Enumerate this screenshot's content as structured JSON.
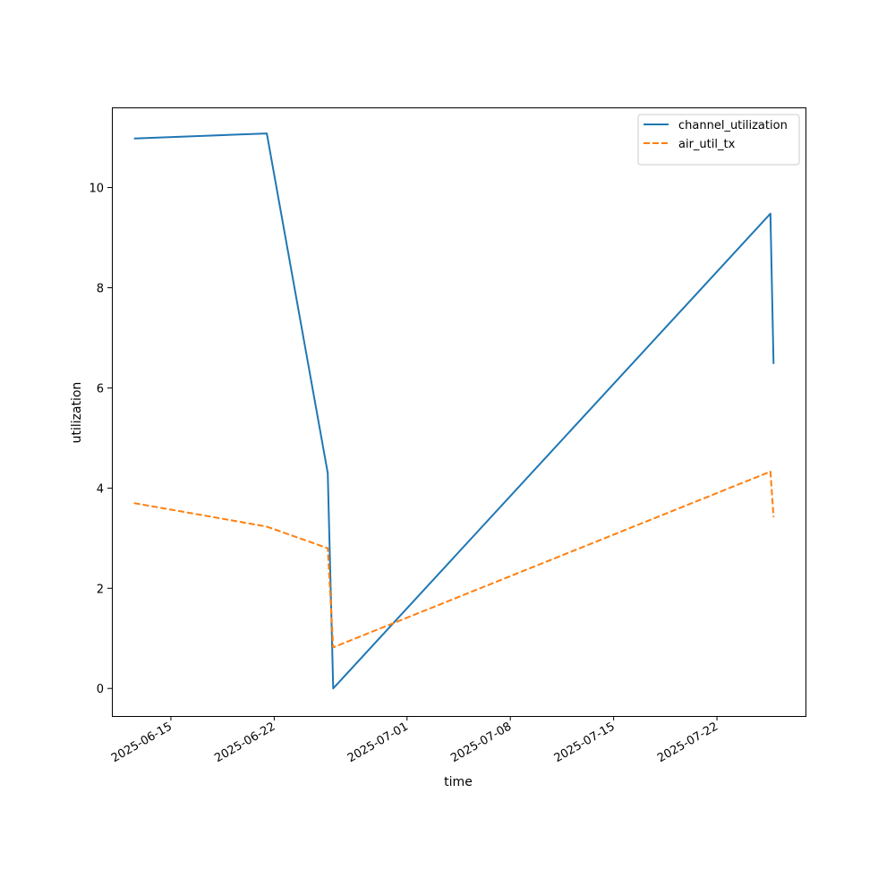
{
  "chart_data": {
    "type": "line",
    "xlabel": "time",
    "ylabel": "utilization",
    "x_type": "date",
    "xlim": [
      "2025-06-11",
      "2025-07-28"
    ],
    "ylim": [
      -0.55,
      11.6
    ],
    "xticks": [
      "2025-06-15",
      "2025-06-22",
      "2025-07-01",
      "2025-07-08",
      "2025-07-15",
      "2025-07-22"
    ],
    "yticks": [
      0,
      2,
      4,
      6,
      8,
      10
    ],
    "grid": false,
    "legend_position": "top-right",
    "series": [
      {
        "name": "channel_utilization",
        "color": "#1f77b4",
        "style": "solid",
        "points": [
          {
            "x": "2025-06-12 12:00",
            "y": 10.98
          },
          {
            "x": "2025-06-21 12:00",
            "y": 11.08
          },
          {
            "x": "2025-06-25 15:00",
            "y": 4.3
          },
          {
            "x": "2025-06-26 00:00",
            "y": 0.0
          },
          {
            "x": "2025-07-25 15:00",
            "y": 9.48
          },
          {
            "x": "2025-07-25 20:00",
            "y": 6.48
          }
        ]
      },
      {
        "name": "air_util_tx",
        "color": "#ff7f0e",
        "style": "dashed",
        "points": [
          {
            "x": "2025-06-12 12:00",
            "y": 3.7
          },
          {
            "x": "2025-06-21 12:00",
            "y": 3.23
          },
          {
            "x": "2025-06-25 15:00",
            "y": 2.8
          },
          {
            "x": "2025-06-26 00:00",
            "y": 0.82
          },
          {
            "x": "2025-07-25 15:00",
            "y": 4.33
          },
          {
            "x": "2025-07-25 20:00",
            "y": 3.42
          }
        ]
      }
    ]
  }
}
